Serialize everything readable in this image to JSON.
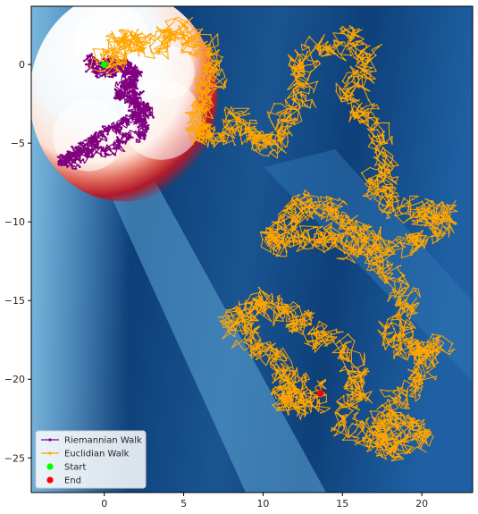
{
  "chart_data": {
    "type": "line",
    "title": "",
    "xlabel": "",
    "ylabel": "",
    "xlim": [
      -4.6,
      23.2
    ],
    "ylim": [
      -27.2,
      3.7
    ],
    "x_ticks": [
      0,
      5,
      10,
      15,
      20
    ],
    "y_ticks": [
      0,
      -5,
      -10,
      -15,
      -20,
      -25
    ],
    "grid": false,
    "legend_position": "lower-left",
    "background": "heatmap",
    "series": [
      {
        "name": "Riemannian Walk",
        "kind": "line-with-markers",
        "color": "#800080",
        "anchors": [
          [
            0,
            0
          ],
          [
            -0.9,
            0.2
          ],
          [
            -0.5,
            -0.6
          ],
          [
            0.6,
            -0.4
          ],
          [
            1.3,
            0.1
          ],
          [
            1.9,
            -0.6
          ],
          [
            1.4,
            -1.3
          ],
          [
            0.9,
            -1.9
          ],
          [
            1.6,
            -2.2
          ],
          [
            2.3,
            -2.7
          ],
          [
            1.9,
            -3.2
          ],
          [
            1.0,
            -3.8
          ],
          [
            0.1,
            -4.2
          ],
          [
            -0.6,
            -4.7
          ],
          [
            -1.5,
            -5.3
          ],
          [
            -2.3,
            -5.9
          ],
          [
            -2.6,
            -6.3
          ],
          [
            -1.6,
            -6.0
          ],
          [
            -0.8,
            -5.6
          ],
          [
            0.4,
            -5.3
          ],
          [
            1.6,
            -4.7
          ],
          [
            2.5,
            -4.1
          ],
          [
            2.0,
            -3.5
          ],
          [
            2.8,
            -3.0
          ],
          [
            2.2,
            -2.2
          ],
          [
            1.6,
            -1.4
          ],
          [
            1.9,
            -0.7
          ],
          [
            1.2,
            -0.3
          ],
          [
            0.5,
            0.2
          ],
          [
            0,
            0
          ]
        ]
      },
      {
        "name": "Euclidian Walk",
        "kind": "line-with-markers",
        "color": "#FFA500",
        "anchors": [
          [
            0,
            0
          ],
          [
            0.8,
            0.8
          ],
          [
            1.8,
            1.6
          ],
          [
            3.2,
            1.4
          ],
          [
            4.8,
            2.1
          ],
          [
            6.2,
            1.2
          ],
          [
            7.0,
            -0.5
          ],
          [
            6.3,
            -2.4
          ],
          [
            5.6,
            -3.8
          ],
          [
            6.8,
            -4.9
          ],
          [
            8.2,
            -3.6
          ],
          [
            9.6,
            -4.6
          ],
          [
            10.8,
            -5.1
          ],
          [
            11.6,
            -3.1
          ],
          [
            12.4,
            -0.9
          ],
          [
            13.1,
            0.6
          ],
          [
            15.3,
            1.7
          ],
          [
            16.4,
            0.2
          ],
          [
            15.6,
            -1.9
          ],
          [
            16.8,
            -4.0
          ],
          [
            17.9,
            -6.2
          ],
          [
            16.9,
            -8.0
          ],
          [
            18.6,
            -8.6
          ],
          [
            20.2,
            -9.6
          ],
          [
            21.8,
            -9.1
          ],
          [
            20.4,
            -10.9
          ],
          [
            18.1,
            -11.4
          ],
          [
            16.2,
            -10.9
          ],
          [
            14.6,
            -9.6
          ],
          [
            13.2,
            -9.1
          ],
          [
            11.6,
            -9.6
          ],
          [
            10.6,
            -10.6
          ],
          [
            11.6,
            -11.8
          ],
          [
            13.3,
            -10.9
          ],
          [
            14.9,
            -11.3
          ],
          [
            16.8,
            -11.6
          ],
          [
            18.4,
            -13.6
          ],
          [
            19.1,
            -15.6
          ],
          [
            18.2,
            -17.6
          ],
          [
            19.6,
            -18.4
          ],
          [
            21.1,
            -17.8
          ],
          [
            19.8,
            -20.1
          ],
          [
            18.1,
            -21.6
          ],
          [
            17.2,
            -23.1
          ],
          [
            18.6,
            -24.6
          ],
          [
            20.1,
            -23.6
          ],
          [
            18.8,
            -22.6
          ],
          [
            16.9,
            -23.9
          ],
          [
            15.2,
            -22.6
          ],
          [
            16.1,
            -20.6
          ],
          [
            15.3,
            -18.6
          ],
          [
            13.8,
            -17.1
          ],
          [
            12.1,
            -16.3
          ],
          [
            10.6,
            -15.3
          ],
          [
            9.1,
            -15.3
          ],
          [
            8.1,
            -16.4
          ],
          [
            9.6,
            -17.6
          ],
          [
            11.1,
            -18.9
          ],
          [
            12.1,
            -20.6
          ],
          [
            10.9,
            -21.1
          ],
          [
            12.6,
            -21.6
          ],
          [
            13.6,
            -20.9
          ]
        ]
      }
    ],
    "markers": [
      {
        "name": "Start",
        "x": 0,
        "y": 0,
        "color": "#00FF00"
      },
      {
        "name": "End",
        "x": 13.6,
        "y": -20.9,
        "color": "#FF0000"
      }
    ]
  },
  "colors": {
    "plot_bg_dark": "#0b3c73",
    "plot_bg_mid": "#1f64a8",
    "plot_bg_light": "#6fb2dc",
    "red_ring": "#b2182b",
    "center_white": "#f7fbff"
  }
}
